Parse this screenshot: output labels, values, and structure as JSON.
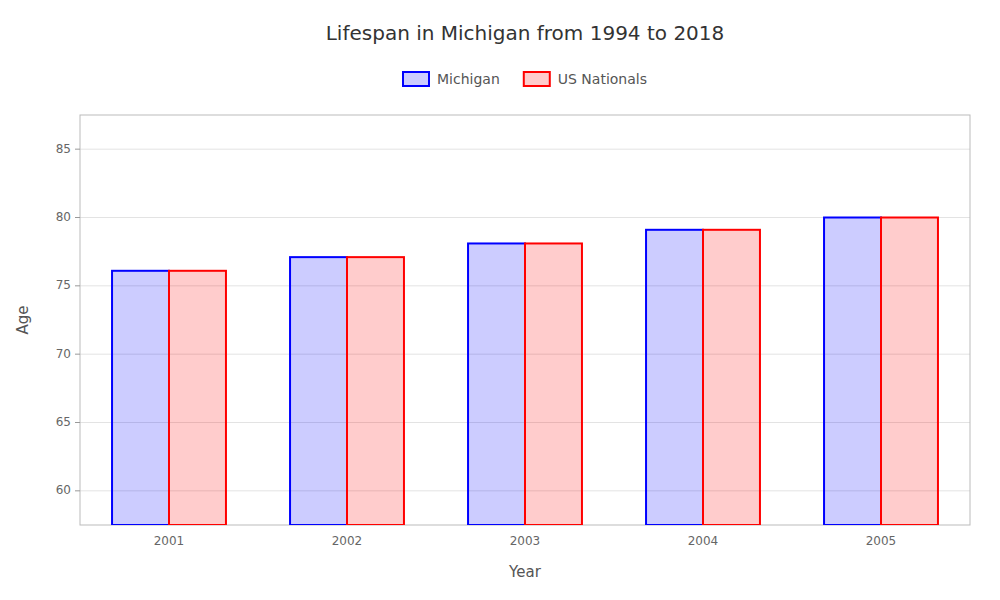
{
  "chart_data": {
    "type": "bar",
    "title": "Lifespan in Michigan from 1994 to 2018",
    "xlabel": "Year",
    "ylabel": "Age",
    "categories": [
      "2001",
      "2002",
      "2003",
      "2004",
      "2005"
    ],
    "series": [
      {
        "name": "Michigan",
        "color": "#0000ff",
        "values": [
          76.1,
          77.1,
          78.1,
          79.1,
          80.0
        ]
      },
      {
        "name": "US Nationals",
        "color": "#ff0000",
        "values": [
          76.1,
          77.1,
          78.1,
          79.1,
          80.0
        ]
      }
    ],
    "ylim": [
      57.5,
      87.5
    ],
    "yticks": [
      60,
      65,
      70,
      75,
      80,
      85
    ],
    "grid": true,
    "legend": "top"
  }
}
